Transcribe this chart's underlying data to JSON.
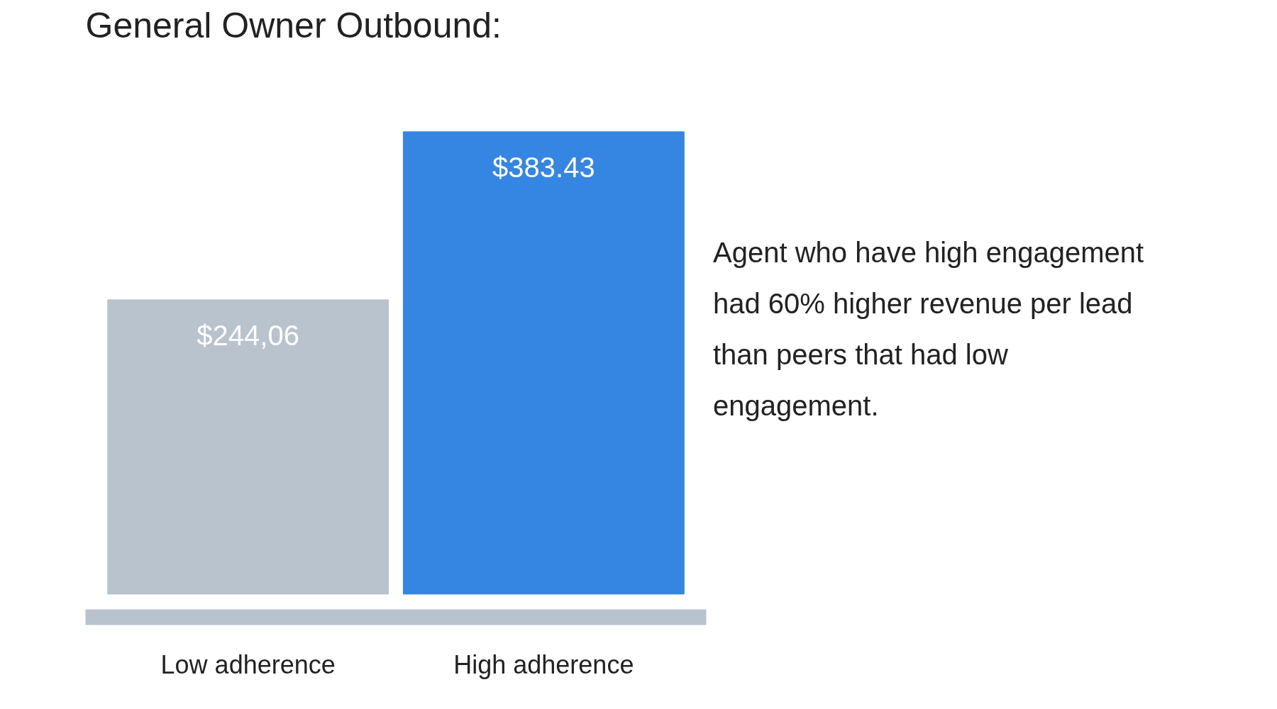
{
  "chart_data": {
    "type": "bar",
    "title": "General Owner Outbound:",
    "categories": [
      "Low adherence",
      "High adherence"
    ],
    "values": [
      244.06,
      383.43
    ],
    "colors": [
      "#b9c3cd",
      "#3585e2"
    ],
    "value_labels": [
      "$244,06",
      "$383.43"
    ],
    "tick_labels": "x",
    "grid": false,
    "annotations": [
      "Agent who have high engagement had 60% higher revenue per lead than peers that had low engagement."
    ]
  }
}
